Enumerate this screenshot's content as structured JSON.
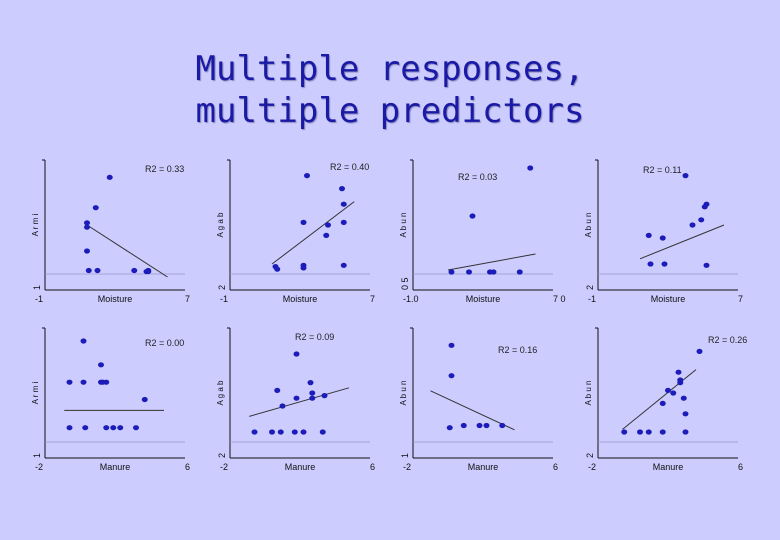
{
  "title_line1": "Multiple responses,",
  "title_line2": "multiple predictors",
  "colors": {
    "background": "#ccccff",
    "title": "#1a1aa6",
    "points": "#1c1cb8",
    "line": "#333333",
    "baseline": "#9999cc"
  },
  "chart_data": [
    {
      "type": "scatter",
      "row": 1,
      "col": 1,
      "r2": "R2 = 0.33",
      "xlabel": "Moisture",
      "xticks": [
        "-1",
        "7"
      ],
      "xlim": [
        -1,
        7
      ],
      "ylabel": "A r m i",
      "yticks": [
        "1",
        ""
      ],
      "ylim": [
        1,
        7
      ],
      "x": [
        2.7,
        1.9,
        1.4,
        1.4,
        1.4,
        1.5,
        2.0,
        4.1,
        4.8,
        4.9,
        4.9
      ],
      "y": [
        6.2,
        4.8,
        4.1,
        3.9,
        2.8,
        1.9,
        1.9,
        1.9,
        1.85,
        1.9,
        1.85
      ],
      "fit": [
        [
          1.4,
          4.0
        ],
        [
          6.0,
          1.6
        ]
      ]
    },
    {
      "type": "scatter",
      "row": 1,
      "col": 2,
      "r2": "R2 = 0.40",
      "xlabel": "Moisture",
      "xticks": [
        "-1",
        "7"
      ],
      "xlim": [
        -1,
        7
      ],
      "ylabel": "A g a b",
      "yticks": [
        "2",
        ""
      ],
      "ylim": [
        2,
        7
      ],
      "x": [
        3.4,
        5.4,
        5.5,
        3.2,
        4.6,
        5.5,
        4.5,
        1.6,
        1.7,
        3.2,
        3.2,
        5.5
      ],
      "y": [
        6.4,
        5.9,
        5.3,
        4.6,
        4.5,
        4.6,
        4.1,
        2.9,
        2.8,
        2.95,
        2.85,
        2.95
      ],
      "fit": [
        [
          1.4,
          3.0
        ],
        [
          6.1,
          5.4
        ]
      ]
    },
    {
      "type": "scatter",
      "row": 1,
      "col": 3,
      "r2": "R2 = 0.03",
      "xlabel": "Moisture",
      "xticks": [
        "-1.0",
        "7 0"
      ],
      "xlim": [
        -1,
        7
      ],
      "ylabel": "A b u n",
      "yticks": [
        "0 5",
        ""
      ],
      "ylim": [
        0.5,
        7
      ],
      "x": [
        5.7,
        2.4,
        1.2,
        2.2,
        3.4,
        3.6,
        5.1
      ],
      "y": [
        6.6,
        4.2,
        1.4,
        1.4,
        1.4,
        1.4,
        1.4
      ],
      "fit": [
        [
          1.0,
          1.5
        ],
        [
          6.0,
          2.3
        ]
      ]
    },
    {
      "type": "scatter",
      "row": 1,
      "col": 4,
      "r2": "R2 = 0.11",
      "xlabel": "Moisture",
      "xticks": [
        "-1",
        "7"
      ],
      "xlim": [
        -1,
        7
      ],
      "ylabel": "A b u n",
      "yticks": [
        "2",
        ""
      ],
      "ylim": [
        2,
        7
      ],
      "x": [
        4.0,
        5.2,
        5.1,
        4.9,
        4.4,
        1.9,
        2.7,
        2.0,
        2.8,
        5.2
      ],
      "y": [
        6.4,
        5.3,
        5.2,
        4.7,
        4.5,
        4.1,
        4.0,
        3.0,
        3.0,
        2.95
      ],
      "fit": [
        [
          1.4,
          3.2
        ],
        [
          6.2,
          4.5
        ]
      ]
    },
    {
      "type": "scatter",
      "row": 2,
      "col": 1,
      "r2": "R2 = 0.00",
      "xlabel": "Manure",
      "xticks": [
        "-2",
        "6"
      ],
      "xlim": [
        -2,
        6
      ],
      "ylabel": "A r m i",
      "yticks": [
        "1",
        ""
      ],
      "ylim": [
        1,
        7
      ],
      "x": [
        0.2,
        1.2,
        1.2,
        0.2,
        1.3,
        1.5,
        3.7,
        -0.6,
        -0.6,
        0.3,
        1.5,
        1.9,
        2.3,
        3.2
      ],
      "y": [
        6.4,
        5.3,
        4.5,
        4.5,
        4.5,
        4.5,
        3.7,
        4.5,
        2.4,
        2.4,
        2.4,
        2.4,
        2.4,
        2.4
      ],
      "fit": [
        [
          -0.9,
          3.2
        ],
        [
          4.8,
          3.2
        ]
      ]
    },
    {
      "type": "scatter",
      "row": 2,
      "col": 2,
      "r2": "R2 = 0.09",
      "xlabel": "Manure",
      "xticks": [
        "-2",
        "6"
      ],
      "xlim": [
        -2,
        6
      ],
      "ylabel": "A g a b",
      "yticks": [
        "2",
        ""
      ],
      "ylim": [
        2,
        7
      ],
      "x": [
        1.8,
        2.6,
        2.7,
        0.7,
        1.8,
        2.7,
        3.4,
        1.0,
        -0.6,
        0.4,
        0.9,
        1.7,
        2.2,
        3.3
      ],
      "y": [
        6.0,
        4.9,
        4.5,
        4.6,
        4.3,
        4.3,
        4.4,
        4.0,
        3.0,
        3.0,
        3.0,
        3.0,
        3.0,
        3.0
      ],
      "fit": [
        [
          -0.9,
          3.6
        ],
        [
          4.8,
          4.7
        ]
      ]
    },
    {
      "type": "scatter",
      "row": 2,
      "col": 3,
      "r2": "R2 = 0.16",
      "xlabel": "Manure",
      "xticks": [
        "-2",
        "6"
      ],
      "xlim": [
        -2,
        6
      ],
      "ylabel": "A b u n",
      "yticks": [
        "1",
        ""
      ],
      "ylim": [
        1,
        7
      ],
      "x": [
        0.2,
        0.2,
        0.1,
        0.9,
        1.8,
        2.2,
        3.1
      ],
      "y": [
        6.2,
        4.8,
        2.4,
        2.5,
        2.5,
        2.5,
        2.5
      ],
      "fit": [
        [
          -1.0,
          4.1
        ],
        [
          3.8,
          2.3
        ]
      ]
    },
    {
      "type": "scatter",
      "row": 2,
      "col": 4,
      "r2": "R2 = 0.26",
      "xlabel": "Manure",
      "xticks": [
        "-2",
        "6"
      ],
      "xlim": [
        -2,
        6
      ],
      "ylabel": "A b u n",
      "yticks": [
        "2",
        ""
      ],
      "ylim": [
        2,
        7
      ],
      "x": [
        3.8,
        2.6,
        2.7,
        2.7,
        2.0,
        2.3,
        2.9,
        1.7,
        3.0,
        -0.5,
        0.4,
        0.9,
        1.7,
        3.0
      ],
      "y": [
        6.1,
        5.3,
        5.0,
        4.9,
        4.6,
        4.5,
        4.3,
        4.1,
        3.7,
        3.0,
        3.0,
        3.0,
        3.0,
        3.0
      ],
      "fit": [
        [
          -0.6,
          3.1
        ],
        [
          3.6,
          5.4
        ]
      ]
    }
  ]
}
